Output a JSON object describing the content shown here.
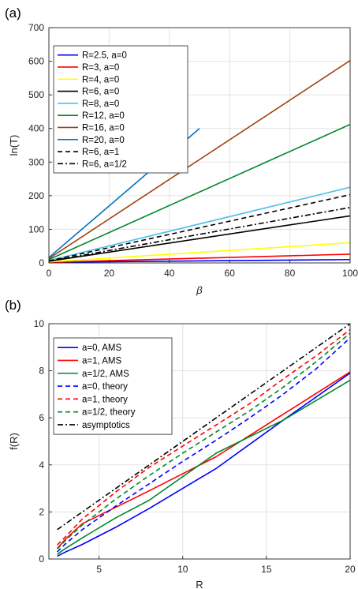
{
  "chart_data": [
    {
      "panel_label": "(a)",
      "type": "line",
      "xlabel": "β",
      "ylabel": "ln(T)",
      "xlim": [
        0,
        100
      ],
      "ylim": [
        0,
        700
      ],
      "xticks": [
        0,
        20,
        40,
        60,
        80,
        100
      ],
      "yticks": [
        0,
        100,
        200,
        300,
        400,
        500,
        600,
        700
      ],
      "grid": true,
      "legend_position": "top-left",
      "series": [
        {
          "name": "R=2.5, a=0",
          "color": "#0000FF",
          "dash": "solid",
          "x": [
            0,
            100
          ],
          "y": [
            2,
            10
          ]
        },
        {
          "name": "R=3, a=0",
          "color": "#FF0000",
          "dash": "solid",
          "x": [
            0,
            100
          ],
          "y": [
            2,
            26
          ]
        },
        {
          "name": "R=4, a=0",
          "color": "#FFFF00",
          "dash": "solid",
          "x": [
            0,
            100
          ],
          "y": [
            3,
            60
          ]
        },
        {
          "name": "R=6, a=0",
          "color": "#000000",
          "dash": "solid",
          "x": [
            0,
            100
          ],
          "y": [
            5,
            140
          ]
        },
        {
          "name": "R=8, a=0",
          "color": "#4DBEEE",
          "dash": "solid",
          "x": [
            0,
            100
          ],
          "y": [
            7,
            225
          ]
        },
        {
          "name": "R=12, a=0",
          "color": "#00882B",
          "dash": "solid",
          "x": [
            0,
            100
          ],
          "y": [
            10,
            412
          ]
        },
        {
          "name": "R=16, a=0",
          "color": "#A0410D",
          "dash": "solid",
          "x": [
            0,
            100
          ],
          "y": [
            13,
            602
          ]
        },
        {
          "name": "R=20, a=0",
          "color": "#0072BD",
          "dash": "solid",
          "x": [
            0,
            50
          ],
          "y": [
            16,
            400
          ]
        },
        {
          "name": "R=6, a=1",
          "color": "#000000",
          "dash": "dashed",
          "x": [
            0,
            100
          ],
          "y": [
            6,
            203
          ]
        },
        {
          "name": "R=6, a=1/2",
          "color": "#000000",
          "dash": "dashdot",
          "x": [
            0,
            100
          ],
          "y": [
            5,
            165
          ]
        }
      ]
    },
    {
      "panel_label": "(b)",
      "type": "line",
      "xlabel": "R",
      "ylabel": "f(R)",
      "xlim": [
        2,
        20
      ],
      "ylim": [
        0,
        10
      ],
      "xticks": [
        5,
        10,
        15,
        20
      ],
      "yticks": [
        0,
        2,
        4,
        6,
        8,
        10
      ],
      "grid": true,
      "legend_position": "top-left",
      "series": [
        {
          "name": "a=0, AMS",
          "color": "#0000FF",
          "dash": "solid",
          "x": [
            2.5,
            3,
            4,
            6,
            8,
            12,
            16,
            20
          ],
          "y": [
            0.12,
            0.3,
            0.62,
            1.35,
            2.15,
            3.85,
            5.9,
            7.9
          ]
        },
        {
          "name": "a=1, AMS",
          "color": "#FF0000",
          "dash": "solid",
          "x": [
            2.5,
            3,
            4,
            6,
            8,
            12,
            16,
            20
          ],
          "y": [
            0.45,
            0.85,
            1.5,
            2.2,
            2.9,
            4.35,
            6.15,
            7.95
          ]
        },
        {
          "name": "a=1/2, AMS",
          "color": "#00882B",
          "dash": "solid",
          "x": [
            2.5,
            3,
            4,
            6,
            8,
            12,
            16,
            20
          ],
          "y": [
            0.2,
            0.45,
            0.9,
            1.75,
            2.5,
            4.5,
            5.9,
            7.6
          ]
        },
        {
          "name": "a=0, theory",
          "color": "#0000FF",
          "dash": "dashed",
          "x": [
            2.5,
            3,
            4,
            6,
            8,
            10,
            12,
            14,
            16,
            18,
            20
          ],
          "y": [
            0.3,
            0.65,
            1.25,
            2.25,
            3.2,
            4.15,
            5.05,
            6.0,
            7.0,
            8.1,
            9.4
          ]
        },
        {
          "name": "a=1, theory",
          "color": "#FF0000",
          "dash": "dashed",
          "x": [
            2.5,
            3,
            4,
            6,
            8,
            10,
            12,
            14,
            16,
            18,
            20
          ],
          "y": [
            0.6,
            0.95,
            1.7,
            2.85,
            3.9,
            4.8,
            5.7,
            6.6,
            7.65,
            8.65,
            9.75
          ]
        },
        {
          "name": "a=1/2, theory",
          "color": "#00882B",
          "dash": "dashed",
          "x": [
            2.5,
            3,
            4,
            6,
            8,
            10,
            12,
            14,
            16,
            18,
            20
          ],
          "y": [
            0.42,
            0.8,
            1.45,
            2.55,
            3.55,
            4.5,
            5.4,
            6.3,
            7.3,
            8.4,
            9.6
          ]
        },
        {
          "name": "asymptotics",
          "color": "#000000",
          "dash": "dashdot",
          "x": [
            2.5,
            20
          ],
          "y": [
            1.25,
            10.0
          ]
        }
      ]
    }
  ]
}
